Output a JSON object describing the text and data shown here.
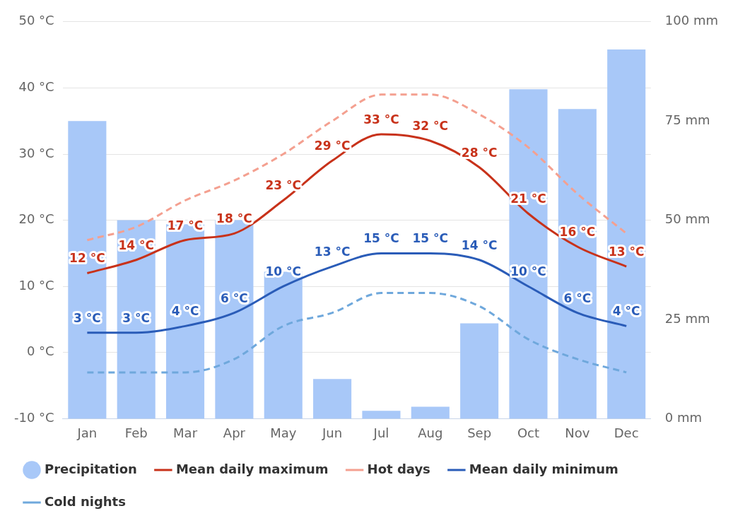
{
  "chart_data": {
    "type": "bar",
    "categories": [
      "Jan",
      "Feb",
      "Mar",
      "Apr",
      "May",
      "Jun",
      "Jul",
      "Aug",
      "Sep",
      "Oct",
      "Nov",
      "Dec"
    ],
    "series": [
      {
        "name": "Precipitation",
        "axis": "y2",
        "color": "#a8c8f8",
        "values": [
          75,
          50,
          49,
          50,
          37,
          10,
          2,
          3,
          24,
          83,
          78,
          93
        ]
      },
      {
        "name": "Mean daily maximum",
        "type": "line",
        "color": "#c8321a",
        "line_style": "solid",
        "values": [
          12,
          14,
          17,
          18,
          23,
          29,
          33,
          32,
          28,
          21,
          16,
          13
        ],
        "value_labels": [
          "12 °C",
          "14 °C",
          "17 °C",
          "18 °C",
          "23 °C",
          "29 °C",
          "33 °C",
          "32 °C",
          "28 °C",
          "21 °C",
          "16 °C",
          "13 °C"
        ]
      },
      {
        "name": "Hot days",
        "type": "line",
        "color": "#f4a090",
        "line_style": "dashed",
        "values": [
          17,
          19,
          23,
          26,
          30,
          35,
          39,
          39,
          36,
          31,
          24,
          18
        ]
      },
      {
        "name": "Mean daily minimum",
        "type": "line",
        "color": "#2a5cb8",
        "line_style": "solid",
        "values": [
          3,
          3,
          4,
          6,
          10,
          13,
          15,
          15,
          14,
          10,
          6,
          4
        ],
        "value_labels": [
          "3 °C",
          "3 °C",
          "4 °C",
          "6 °C",
          "10 °C",
          "13 °C",
          "15 °C",
          "15 °C",
          "14 °C",
          "10 °C",
          "6 °C",
          "4 °C"
        ]
      },
      {
        "name": "Cold nights",
        "type": "line",
        "color": "#6fa8dc",
        "line_style": "dashed",
        "values": [
          -3,
          -3,
          -3,
          -1,
          4,
          6,
          9,
          9,
          7,
          2,
          -1,
          -3
        ]
      }
    ],
    "ylim": [
      -10,
      50
    ],
    "yticks": [
      {
        "value": -10,
        "label": "-10 °C"
      },
      {
        "value": 0,
        "label": "0 °C"
      },
      {
        "value": 10,
        "label": "10 °C"
      },
      {
        "value": 20,
        "label": "20 °C"
      },
      {
        "value": 30,
        "label": "30 °C"
      },
      {
        "value": 40,
        "label": "40 °C"
      },
      {
        "value": 50,
        "label": "50 °C"
      }
    ],
    "y2lim": [
      0,
      100
    ],
    "y2ticks": [
      {
        "value": 0,
        "label": "0 mm"
      },
      {
        "value": 25,
        "label": "25 mm"
      },
      {
        "value": 50,
        "label": "50 mm"
      },
      {
        "value": 75,
        "label": "75 mm"
      },
      {
        "value": 100,
        "label": "100 mm"
      }
    ],
    "grid": "y",
    "legend": "bottom",
    "marker": "none"
  }
}
